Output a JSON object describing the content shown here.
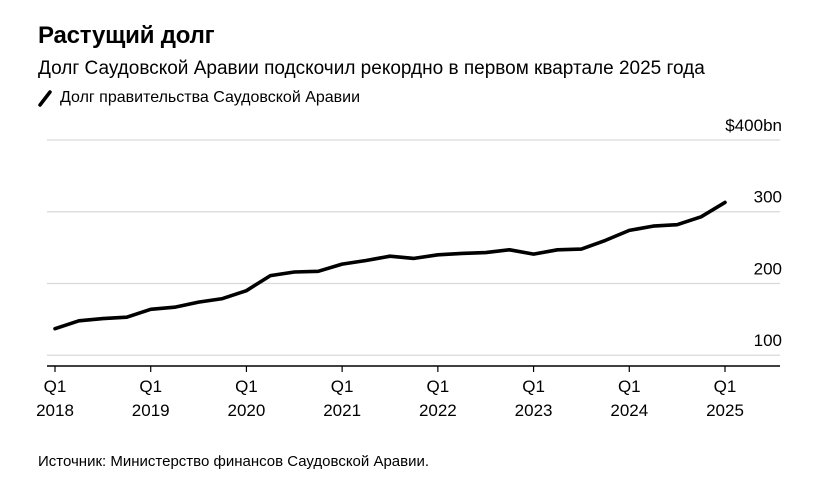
{
  "header": {
    "title": "Растущий долг",
    "subtitle": "Долг Саудовской Аравии подскочил рекордно в первом квартале 2025 года",
    "legend_label": "Долг правительства Саудовской Аравии"
  },
  "footer": {
    "source": "Источник: Министерство финансов Саудовской Аравии."
  },
  "colors": {
    "line": "#000000",
    "grid": "#d9d9d9",
    "axis": "#000000"
  },
  "chart_data": {
    "type": "line",
    "title": "Растущий долг",
    "subtitle": "Долг Саудовской Аравии подскочил рекордно в первом квартале 2025 года",
    "xlabel": "",
    "ylabel": "",
    "ylim": [
      85,
      400
    ],
    "y_ticks": [
      {
        "value": 100,
        "label": "100"
      },
      {
        "value": 200,
        "label": "200"
      },
      {
        "value": 300,
        "label": "300"
      },
      {
        "value": 400,
        "label": "$400bn"
      }
    ],
    "x_ticks": [
      {
        "q": "Q1",
        "year": "2018"
      },
      {
        "q": "Q1",
        "year": "2019"
      },
      {
        "q": "Q1",
        "year": "2020"
      },
      {
        "q": "Q1",
        "year": "2021"
      },
      {
        "q": "Q1",
        "year": "2022"
      },
      {
        "q": "Q1",
        "year": "2023"
      },
      {
        "q": "Q1",
        "year": "2024"
      },
      {
        "q": "Q1",
        "year": "2025"
      }
    ],
    "grid": true,
    "legend": "top-left",
    "series": [
      {
        "name": "Долг правительства Саудовской Аравии",
        "x": [
          "2018 Q1",
          "2018 Q2",
          "2018 Q3",
          "2018 Q4",
          "2019 Q1",
          "2019 Q2",
          "2019 Q3",
          "2019 Q4",
          "2020 Q1",
          "2020 Q2",
          "2020 Q3",
          "2020 Q4",
          "2021 Q1",
          "2021 Q2",
          "2021 Q3",
          "2021 Q4",
          "2022 Q1",
          "2022 Q2",
          "2022 Q3",
          "2022 Q4",
          "2023 Q1",
          "2023 Q2",
          "2023 Q3",
          "2023 Q4",
          "2024 Q1",
          "2024 Q2",
          "2024 Q3",
          "2024 Q4",
          "2025 Q1"
        ],
        "values": [
          137,
          148,
          151,
          153,
          164,
          167,
          174,
          179,
          190,
          211,
          216,
          217,
          227,
          232,
          238,
          235,
          240,
          242,
          243,
          247,
          241,
          247,
          248,
          260,
          274,
          280,
          282,
          293,
          313
        ]
      }
    ]
  }
}
